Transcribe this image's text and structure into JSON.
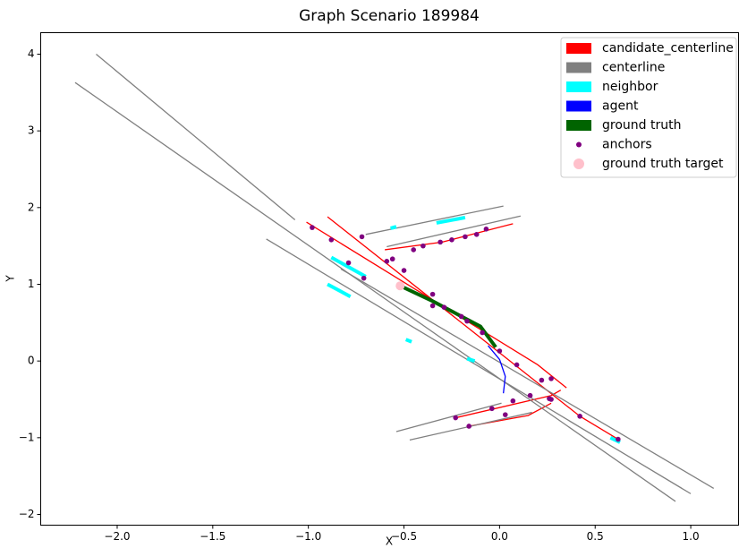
{
  "chart_data": {
    "type": "line",
    "title": "Graph Scenario 189984",
    "x_label": "X",
    "y_label": "Y",
    "xlim": [
      -2.4,
      1.25
    ],
    "ylim": [
      -2.14,
      4.28
    ],
    "xticks": [
      {
        "value": -2,
        "label": "−2.0"
      },
      {
        "value": -1.5,
        "label": "−1.5"
      },
      {
        "value": -1,
        "label": "−1.0"
      },
      {
        "value": -0.5,
        "label": "−0.5"
      },
      {
        "value": 0,
        "label": "0.0"
      },
      {
        "value": 0.5,
        "label": "0.5"
      },
      {
        "value": 1,
        "label": "1.0"
      }
    ],
    "yticks": [
      {
        "value": -2,
        "label": "−2"
      },
      {
        "value": -1,
        "label": "−1"
      },
      0,
      1,
      2,
      3,
      4
    ],
    "grid": false,
    "legend": "upper right",
    "series": [
      {
        "name": "candidate_centerline",
        "color": "#ff0000",
        "style": "line",
        "x": [
          -1.01,
          -0.47,
          0.2,
          0.35,
          null,
          -0.9,
          0.42,
          0.62,
          null,
          -0.6,
          -0.3,
          0.07,
          null,
          -0.23,
          0.27,
          0.32,
          null,
          -0.16,
          0.15,
          0.27
        ],
        "y": [
          1.81,
          0.98,
          -0.05,
          -0.35,
          null,
          1.88,
          -0.72,
          -1.02,
          null,
          1.45,
          1.55,
          1.79,
          null,
          -0.74,
          -0.45,
          -0.38,
          null,
          -0.85,
          -0.71,
          -0.55
        ]
      },
      {
        "name": "centerline",
        "color": "#808080",
        "style": "line",
        "x": [
          -2.11,
          -1.07,
          null,
          -2.22,
          0.92,
          null,
          -1.22,
          1.0,
          null,
          -0.83,
          1.12,
          null,
          -0.7,
          0.02,
          null,
          -0.59,
          0.11,
          null,
          -0.54,
          0.01,
          null,
          -0.47,
          0.17
        ],
        "y": [
          4.0,
          1.84,
          null,
          3.63,
          -1.83,
          null,
          1.59,
          -1.73,
          null,
          1.2,
          -1.66,
          null,
          1.65,
          2.02,
          null,
          1.49,
          1.89,
          null,
          -0.92,
          -0.55,
          null,
          -1.03,
          -0.67
        ]
      },
      {
        "name": "neighbor",
        "color": "#00ffff",
        "style": "line",
        "x": [
          -0.57,
          -0.54,
          null,
          -0.33,
          -0.18,
          null,
          -0.88,
          -0.7,
          null,
          -0.9,
          -0.78,
          null,
          -0.49,
          -0.46,
          null,
          -0.17,
          -0.13,
          null,
          0.58,
          0.63
        ],
        "y": [
          1.73,
          1.75,
          null,
          1.8,
          1.87,
          null,
          1.35,
          1.1,
          null,
          1.0,
          0.84,
          null,
          0.28,
          0.25,
          null,
          0.03,
          0.0,
          null,
          -1.0,
          -1.06
        ]
      },
      {
        "name": "agent",
        "color": "#0000ff",
        "style": "line",
        "x": [
          -0.06,
          0.0,
          0.03,
          0.02
        ],
        "y": [
          0.2,
          0.02,
          -0.2,
          -0.42
        ]
      },
      {
        "name": "ground truth",
        "color": "#006400",
        "style": "line",
        "x": [
          -0.52,
          -0.35,
          -0.1,
          -0.02
        ],
        "y": [
          0.98,
          0.78,
          0.45,
          0.18
        ]
      },
      {
        "name": "anchors",
        "color": "#800080",
        "style": "points",
        "x": [
          -0.98,
          -0.88,
          -0.79,
          -0.71,
          -0.59,
          -0.56,
          -0.5,
          -0.35,
          -0.29,
          -0.17,
          -0.09,
          -0.4,
          -0.31,
          -0.18,
          -0.07,
          0.0,
          0.09,
          0.22,
          0.27,
          0.42,
          0.62,
          -0.23,
          -0.04,
          0.07,
          0.16,
          0.26,
          -0.16,
          0.03,
          0.27,
          -0.35,
          -0.2,
          -0.72,
          -0.45,
          -0.25,
          -0.12
        ],
        "y": [
          1.74,
          1.58,
          1.28,
          1.08,
          1.3,
          1.33,
          1.18,
          0.87,
          0.7,
          0.52,
          0.37,
          1.5,
          1.55,
          1.62,
          1.72,
          0.13,
          -0.05,
          -0.25,
          -0.23,
          -0.72,
          -1.02,
          -0.74,
          -0.62,
          -0.52,
          -0.45,
          -0.49,
          -0.85,
          -0.7,
          -0.5,
          0.72,
          0.58,
          1.62,
          1.45,
          1.58,
          1.65
        ]
      },
      {
        "name": "ground truth target",
        "color": "#ffc0cb",
        "style": "points",
        "x": [
          -0.52
        ],
        "y": [
          0.98
        ]
      }
    ]
  }
}
